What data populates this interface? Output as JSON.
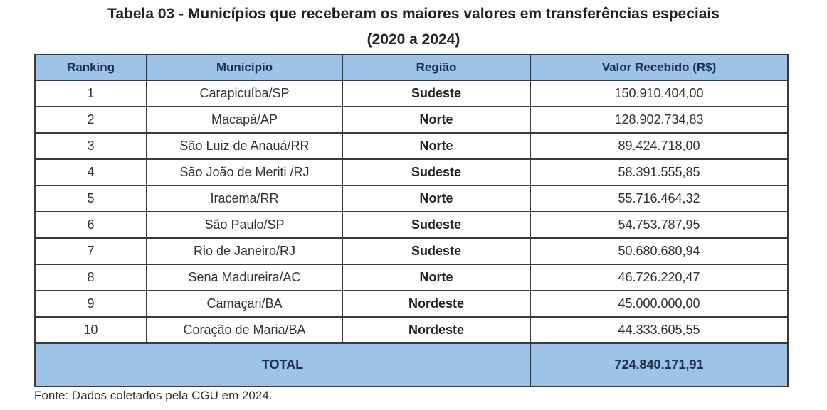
{
  "title_line1": "Tabela 03 - Municípios que receberam os maiores valores em transferências especiais",
  "title_line2": "(2020 a 2024)",
  "headers": [
    "Ranking",
    "Município",
    "Região",
    "Valor Recebido (R$)"
  ],
  "rows": [
    [
      "1",
      "Carapicuíba/SP",
      "Sudeste",
      "150.910.404,00"
    ],
    [
      "2",
      "Macapá/AP",
      "Norte",
      "128.902.734,83"
    ],
    [
      "3",
      "São Luiz de Anauá/RR",
      "Norte",
      "89.424.718,00"
    ],
    [
      "4",
      "São João de Meriti /RJ",
      "Sudeste",
      "58.391.555,85"
    ],
    [
      "5",
      "Iracema/RR",
      "Norte",
      "55.716.464,32"
    ],
    [
      "6",
      "São Paulo/SP",
      "Sudeste",
      "54.753.787,95"
    ],
    [
      "7",
      "Rio de Janeiro/RJ",
      "Sudeste",
      "50.680.680,94"
    ],
    [
      "8",
      "Sena Madureira/AC",
      "Norte",
      "46.726.220,47"
    ],
    [
      "9",
      "Camaçari/BA",
      "Nordeste",
      "45.000.000,00"
    ],
    [
      "10",
      "Coração de Maria/BA",
      "Nordeste",
      "44.333.605,55"
    ]
  ],
  "total": {
    "label": "TOTAL",
    "value": "724.840.171,91"
  },
  "source": "Fonte: Dados coletados pela CGU em 2024.",
  "colors": {
    "header_fill": "#9dc3e6"
  }
}
